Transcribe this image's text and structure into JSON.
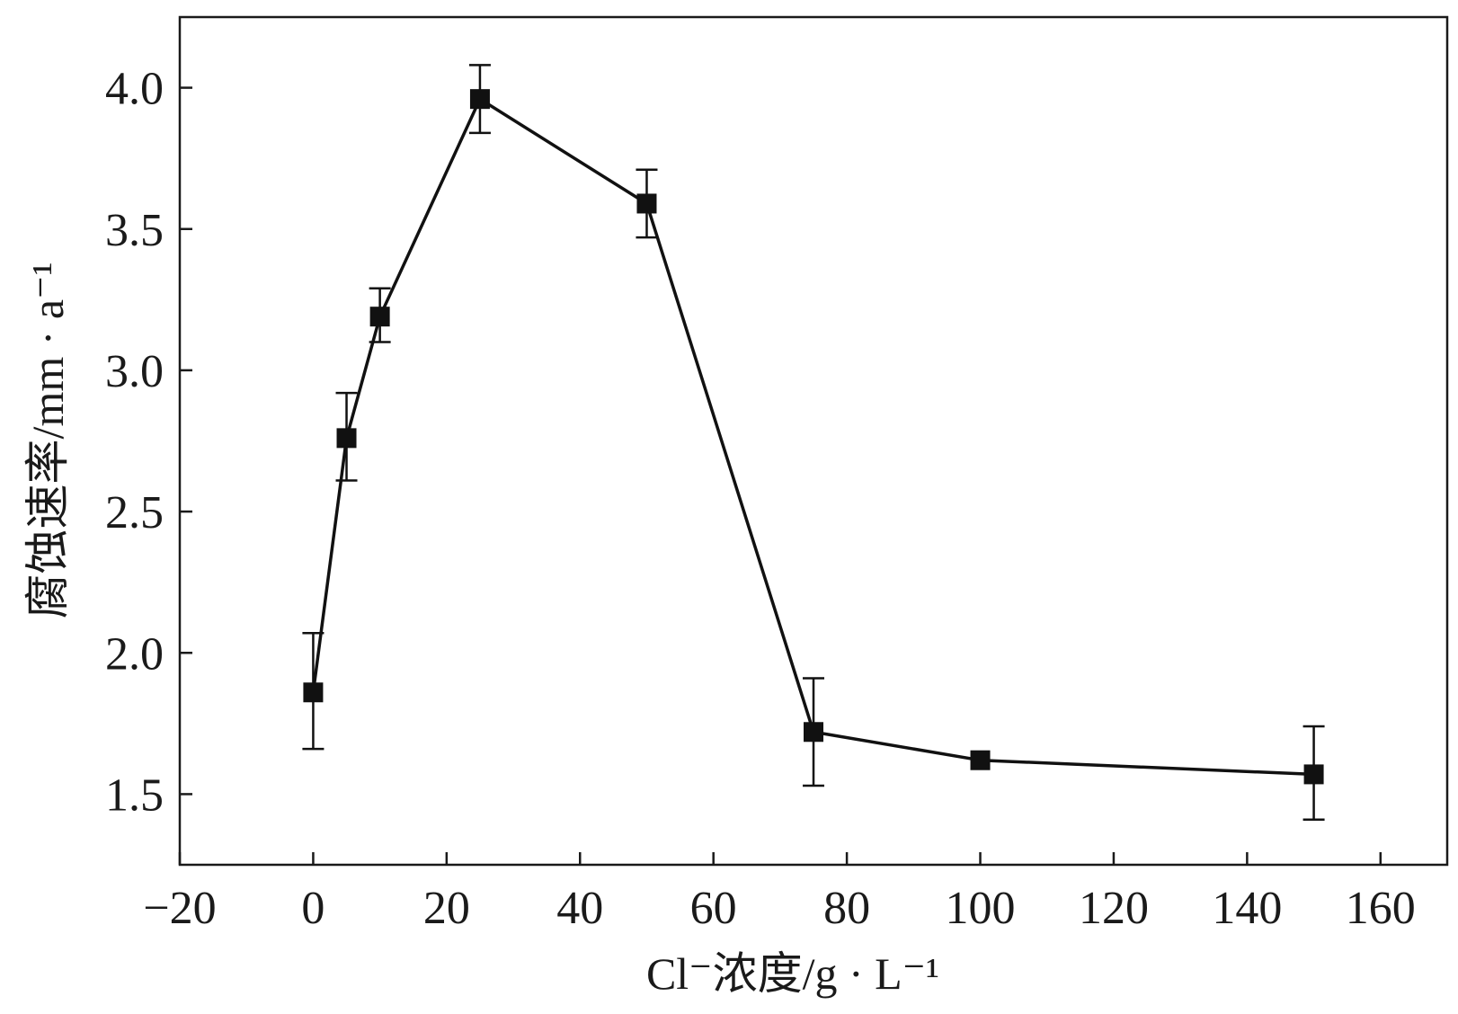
{
  "chart_data": {
    "type": "line",
    "title": "",
    "xlabel": "Cl⁻浓度/g · L⁻¹",
    "ylabel": "腐蚀速率/mm · a⁻¹",
    "xlim": [
      -20,
      170
    ],
    "ylim": [
      1.25,
      4.25
    ],
    "xticks": [
      "−20",
      "0",
      "20",
      "40",
      "60",
      "80",
      "100",
      "120",
      "140",
      "160"
    ],
    "yticks": [
      "1.5",
      "2.0",
      "2.5",
      "3.0",
      "3.5",
      "4.0"
    ],
    "grid": false,
    "legend": "none",
    "marker": "square",
    "series": [
      {
        "x": [
          0,
          5,
          10,
          25,
          50,
          75,
          100,
          150
        ],
        "y": [
          1.86,
          2.76,
          3.19,
          3.96,
          3.59,
          1.72,
          1.62,
          1.57
        ],
        "err_low": [
          0.2,
          0.15,
          0.09,
          0.12,
          0.12,
          0.19,
          0.0,
          0.16
        ],
        "err_high": [
          0.21,
          0.16,
          0.1,
          0.12,
          0.12,
          0.19,
          0.0,
          0.17
        ]
      }
    ]
  },
  "colors": {
    "line": "#111111",
    "marker": "#111111",
    "axis": "#1a1a1a"
  }
}
